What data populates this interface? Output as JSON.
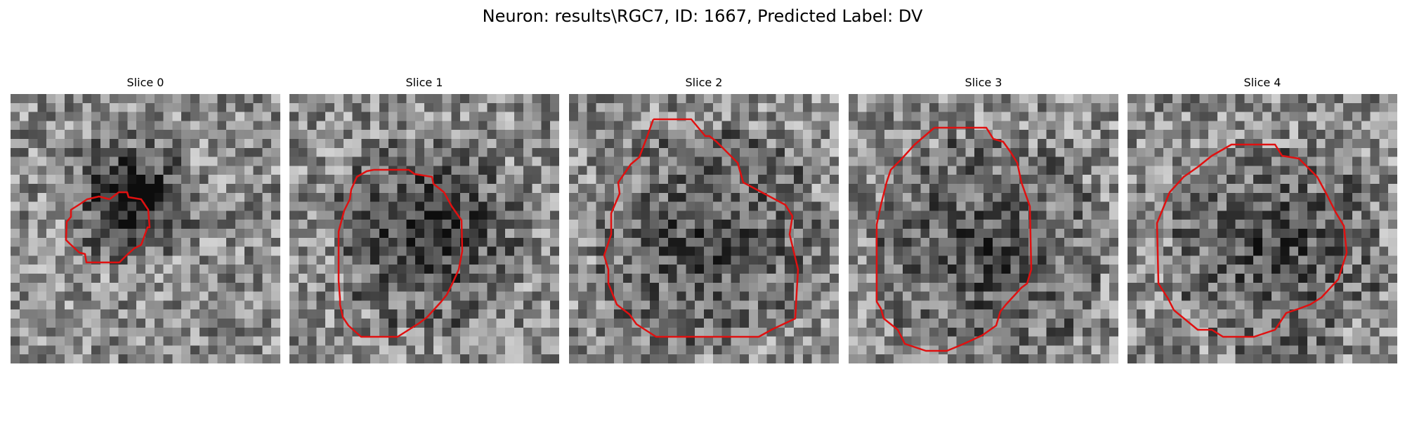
{
  "figure": {
    "title": "Neuron: results\\RGC7, ID: 1667, Predicted Label: DV"
  },
  "colors": {
    "contour": "#e01010",
    "background": "#ffffff",
    "colormap": "gray"
  },
  "slices": [
    {
      "title": "Slice 0",
      "seed": 11,
      "blob": {
        "cx": 13,
        "cy": 11,
        "r": 6,
        "dark": 0.55
      }
    },
    {
      "title": "Slice 1",
      "seed": 23,
      "blob": {
        "cx": 15,
        "cy": 15,
        "r": 9,
        "dark": 0.35
      }
    },
    {
      "title": "Slice 2",
      "seed": 37,
      "blob": {
        "cx": 15,
        "cy": 16,
        "r": 11,
        "dark": 0.2
      }
    },
    {
      "title": "Slice 3",
      "seed": 51,
      "blob": {
        "cx": 15,
        "cy": 17,
        "r": 11,
        "dark": 0.2
      }
    },
    {
      "title": "Slice 4",
      "seed": 67,
      "blob": {
        "cx": 16,
        "cy": 17,
        "r": 10,
        "dark": 0.2
      }
    }
  ]
}
